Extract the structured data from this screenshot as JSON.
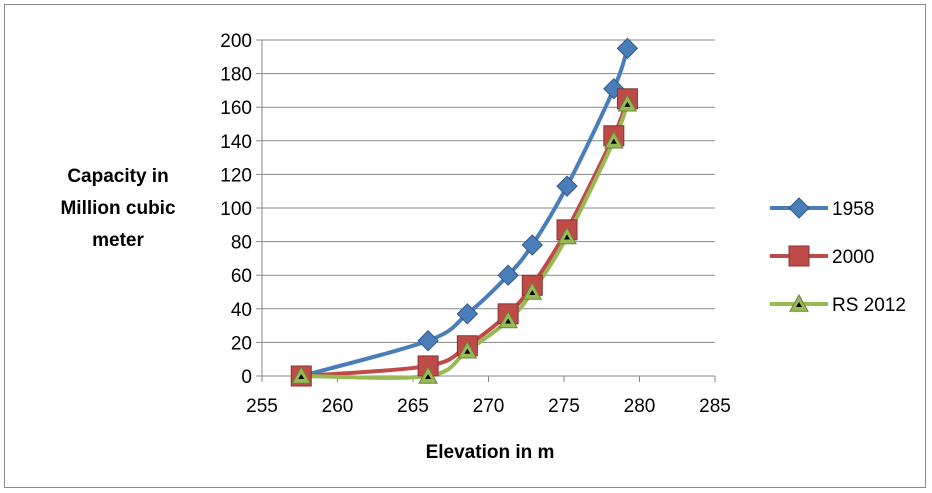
{
  "chart_data": {
    "type": "line",
    "xlabel": "Elevation in m",
    "ylabel": [
      "Capacity in",
      "Million cubic",
      "meter"
    ],
    "xlim": [
      255,
      285
    ],
    "ylim": [
      0,
      200
    ],
    "xticks": [
      "255",
      "260",
      "265",
      "270",
      "275",
      "280",
      "285"
    ],
    "yticks": [
      "0",
      "20",
      "40",
      "60",
      "80",
      "100",
      "120",
      "140",
      "160",
      "180",
      "200"
    ],
    "grid": "horizontal",
    "legend_position": "right",
    "series": [
      {
        "name": "1958",
        "color": "#4a7ebb",
        "marker": "diamond",
        "x": [
          257.6,
          266.0,
          268.6,
          271.3,
          272.9,
          275.2,
          278.3,
          279.2
        ],
        "y": [
          0,
          21,
          37,
          60,
          78,
          113,
          171,
          195
        ]
      },
      {
        "name": "2000",
        "color": "#be4b48",
        "marker": "square",
        "x": [
          257.6,
          266.0,
          268.6,
          271.3,
          272.9,
          275.2,
          278.3,
          279.2
        ],
        "y": [
          0,
          6,
          18,
          37,
          54,
          87,
          143,
          165
        ]
      },
      {
        "name": "RS 2012",
        "color": "#98b954",
        "marker": "triangle",
        "x": [
          257.6,
          266.0,
          268.6,
          271.3,
          272.9,
          275.2,
          278.3,
          279.2
        ],
        "y": [
          0,
          0,
          15,
          33,
          50,
          83,
          140,
          162
        ]
      }
    ]
  }
}
